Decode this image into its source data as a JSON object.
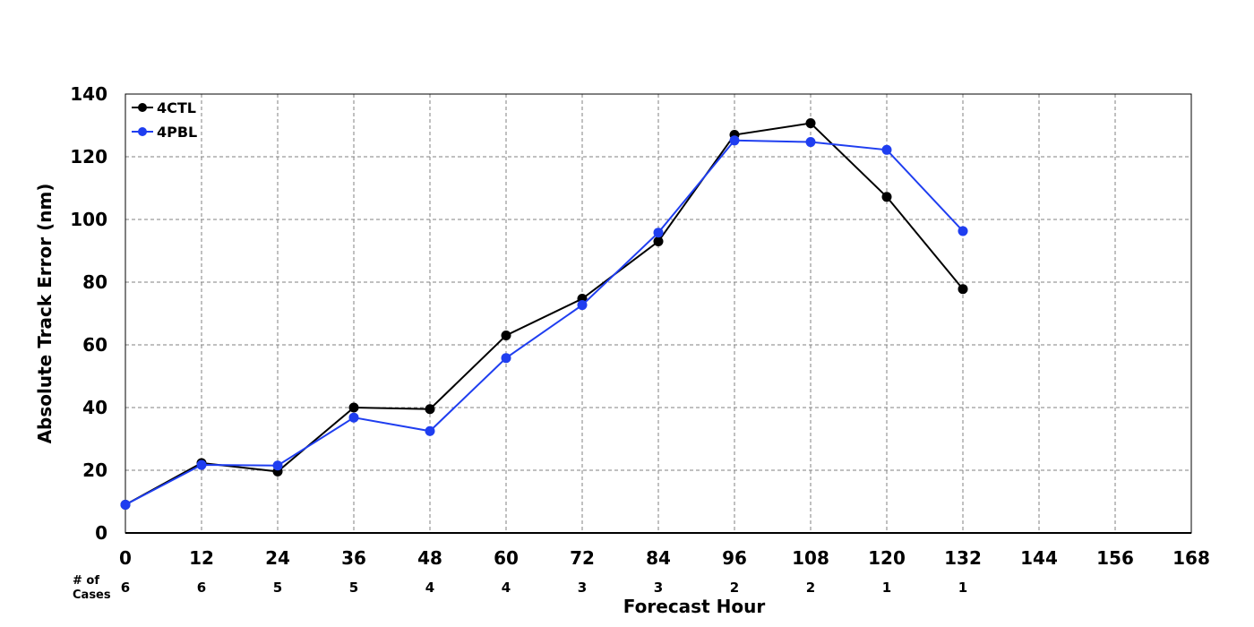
{
  "chart_data": {
    "type": "line",
    "xlabel": "Forecast Hour",
    "ylabel": "Absolute Track Error (nm)",
    "xlim": [
      0,
      168
    ],
    "ylim": [
      0,
      140
    ],
    "x_ticks": [
      0,
      12,
      24,
      36,
      48,
      60,
      72,
      84,
      96,
      108,
      120,
      132,
      144,
      156,
      168
    ],
    "y_ticks": [
      0,
      20,
      40,
      60,
      80,
      100,
      120,
      140
    ],
    "grid": true,
    "legend_position": "top-left",
    "x": [
      0,
      12,
      24,
      36,
      48,
      60,
      72,
      84,
      96,
      108,
      120,
      132
    ],
    "series": [
      {
        "name": "4CTL",
        "color": "#000000",
        "values": [
          9,
          22.3,
          19.6,
          40,
          39.5,
          63,
          74.7,
          93,
          127,
          130.7,
          107.2,
          77.8
        ]
      },
      {
        "name": "4PBL",
        "color": "#1f3ef0",
        "values": [
          9,
          21.7,
          21.5,
          36.8,
          32.5,
          55.8,
          72.7,
          95.8,
          125.2,
          124.7,
          122.2,
          96.3
        ]
      }
    ],
    "cases_title": [
      "# of",
      "Cases"
    ],
    "cases": [
      6,
      6,
      5,
      5,
      4,
      4,
      3,
      3,
      2,
      2,
      1,
      1
    ]
  }
}
